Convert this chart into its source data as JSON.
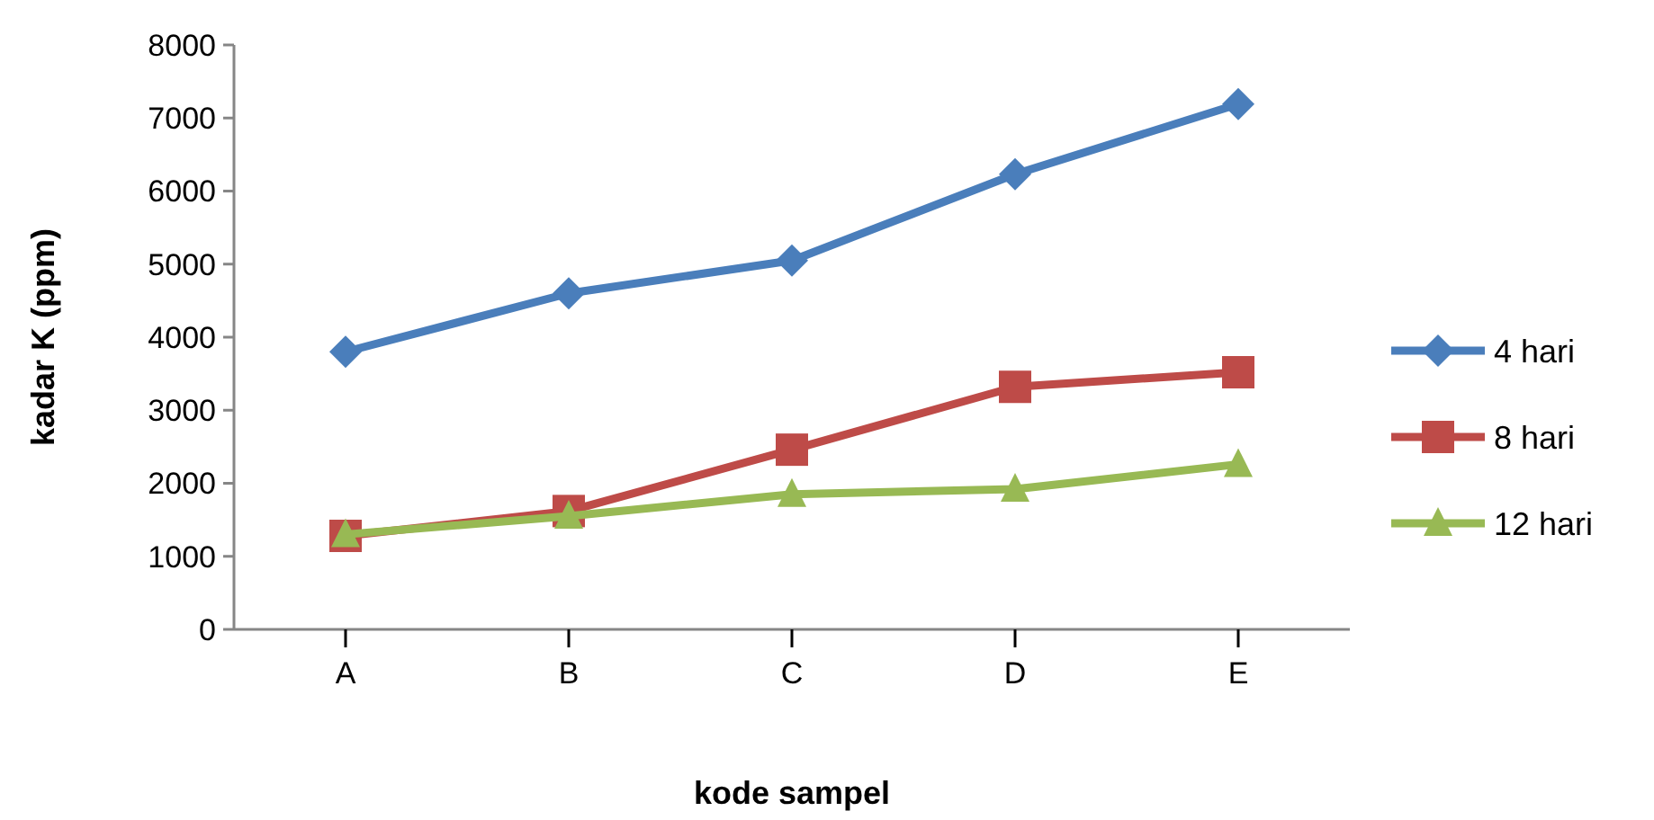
{
  "chart_data": {
    "type": "line",
    "xlabel": "kode sampel",
    "ylabel": "kadar K (ppm)",
    "categories": [
      "A",
      "B",
      "C",
      "D",
      "E"
    ],
    "ylim": [
      0,
      8000
    ],
    "yticks": [
      0,
      1000,
      2000,
      3000,
      4000,
      5000,
      6000,
      7000,
      8000
    ],
    "grid": false,
    "legend": "right",
    "line_style": "solid",
    "series": [
      {
        "name": "4 hari",
        "color": "#4a7ebb",
        "marker": "diamond",
        "values": [
          3800,
          4600,
          5050,
          6230,
          7190
        ]
      },
      {
        "name": "8 hari",
        "color": "#be4b48",
        "marker": "square",
        "values": [
          1280,
          1620,
          2460,
          3320,
          3520
        ]
      },
      {
        "name": "12 hari",
        "color": "#98b954",
        "marker": "triangle",
        "values": [
          1300,
          1550,
          1850,
          1920,
          2260
        ]
      }
    ]
  }
}
